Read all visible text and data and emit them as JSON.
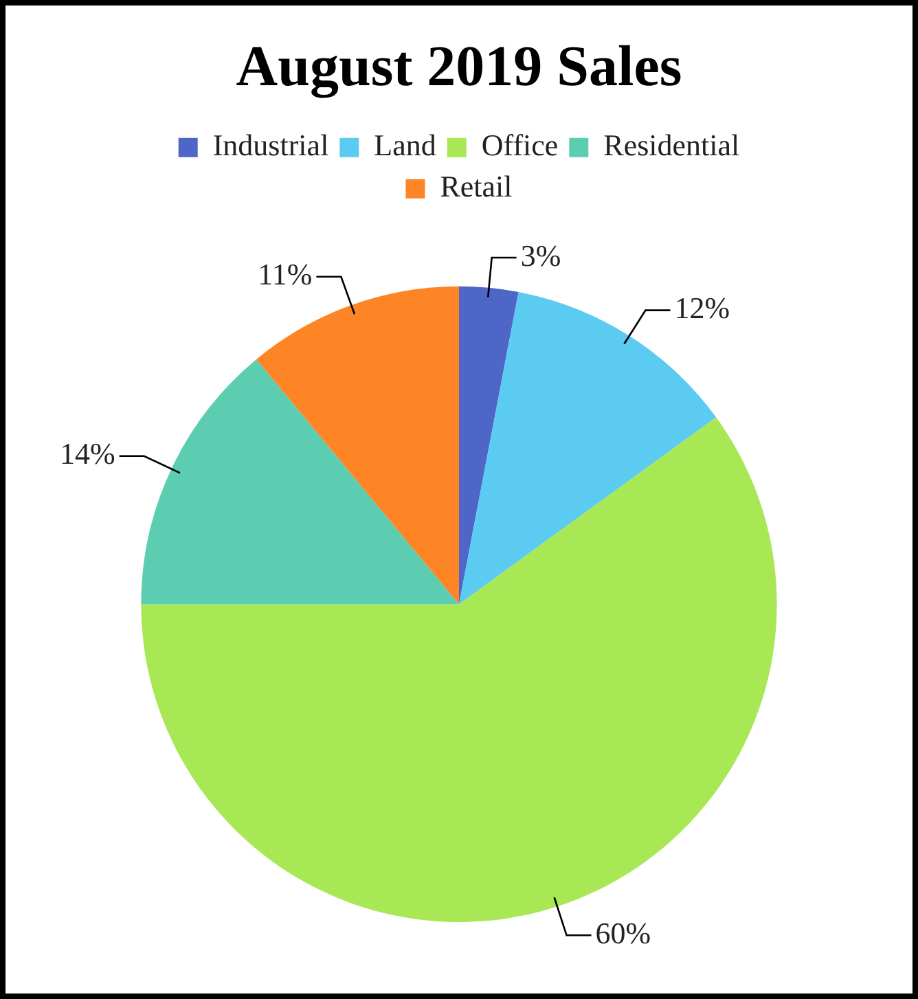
{
  "chart_data": {
    "type": "pie",
    "title": "August 2019 Sales",
    "categories": [
      "Industrial",
      "Land",
      "Office",
      "Residential",
      "Retail"
    ],
    "values": [
      3,
      12,
      60,
      14,
      11
    ],
    "colors": [
      "#4f66c9",
      "#5ccbf2",
      "#a8e854",
      "#5ccdb0",
      "#fd8525"
    ],
    "value_labels": [
      "3%",
      "12%",
      "60%",
      "14%",
      "11%"
    ],
    "legend": "top"
  }
}
